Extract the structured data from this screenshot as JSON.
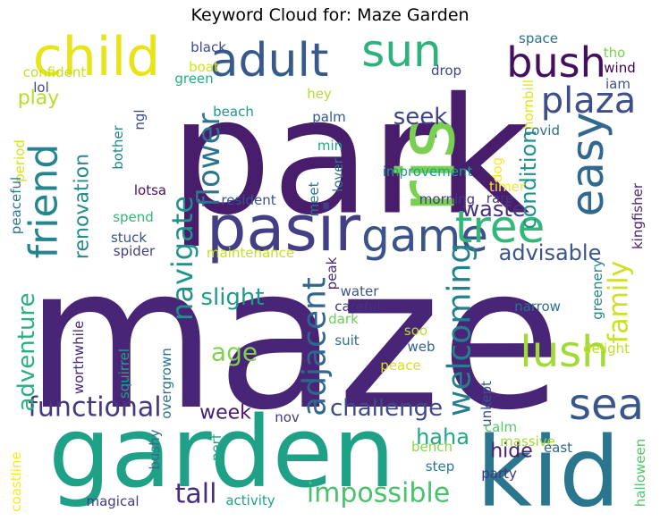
{
  "chart_data": {
    "type": "wordcloud",
    "title": "Keyword Cloud for: Maze Garden",
    "palette": "viridis",
    "words": [
      {
        "text": "maze",
        "rank": 1,
        "color": "#482576"
      },
      {
        "text": "park",
        "rank": 2,
        "color": "#471d6c"
      },
      {
        "text": "garden",
        "rank": 3,
        "color": "#1fa187"
      },
      {
        "text": "kid",
        "rank": 4,
        "color": "#2a768e"
      },
      {
        "text": "pasir",
        "rank": 5,
        "color": "#433e85"
      },
      {
        "text": "ris",
        "rank": 6,
        "color": "#7ad151"
      },
      {
        "text": "child",
        "rank": 7,
        "color": "#e8e419"
      },
      {
        "text": "adult",
        "rank": 8,
        "color": "#38598c"
      },
      {
        "text": "sun",
        "rank": 9,
        "color": "#2db27d"
      },
      {
        "text": "bush",
        "rank": 10,
        "color": "#440f5f"
      },
      {
        "text": "easy",
        "rank": 11,
        "color": "#31688e"
      },
      {
        "text": "game",
        "rank": 12,
        "color": "#3b528b"
      },
      {
        "text": "tree",
        "rank": 13,
        "color": "#32b67a"
      },
      {
        "text": "lush",
        "rank": 14,
        "color": "#a2da37"
      },
      {
        "text": "sea",
        "rank": 15,
        "color": "#39568c"
      },
      {
        "text": "friend",
        "rank": 16,
        "color": "#25858e"
      },
      {
        "text": "plaza",
        "rank": 17,
        "color": "#3d4e8a"
      },
      {
        "text": "welcoming",
        "rank": 18,
        "color": "#277f8e"
      },
      {
        "text": "adjacent",
        "rank": 19,
        "color": "#31668e"
      },
      {
        "text": "flower",
        "rank": 20,
        "color": "#2c738e"
      },
      {
        "text": "navigate",
        "rank": 21,
        "color": "#21918c"
      },
      {
        "text": "family",
        "rank": 22,
        "color": "#cde11d"
      },
      {
        "text": "impossible",
        "rank": 23,
        "color": "#4ac16d"
      },
      {
        "text": "functional",
        "rank": 24,
        "color": "#453781"
      },
      {
        "text": "tall",
        "rank": 25,
        "color": "#472d7b"
      },
      {
        "text": "challenge",
        "rank": 26,
        "color": "#3e4989"
      },
      {
        "text": "adventure",
        "rank": 27,
        "color": "#2ab07f"
      },
      {
        "text": "seek",
        "rank": 28,
        "color": "#414487"
      },
      {
        "text": "advisable",
        "rank": 29,
        "color": "#3a548c"
      },
      {
        "text": "condition",
        "rank": 30,
        "color": "#20928c"
      },
      {
        "text": "slight",
        "rank": 31,
        "color": "#1e9b8a"
      },
      {
        "text": "age",
        "rank": 32,
        "color": "#7fd34e"
      },
      {
        "text": "waste",
        "rank": 33,
        "color": "#46337e"
      },
      {
        "text": "renovation",
        "rank": 34,
        "color": "#238a8d"
      },
      {
        "text": "haha",
        "rank": 35,
        "color": "#22a884"
      },
      {
        "text": "week",
        "rank": 36,
        "color": "#481b6d"
      },
      {
        "text": "hide",
        "rank": 37,
        "color": "#482173"
      },
      {
        "text": "play",
        "rank": 38,
        "color": "#b5de2b"
      },
      {
        "text": "unkept",
        "rank": 39,
        "color": "#3b528b"
      },
      {
        "text": "worthwhile",
        "rank": 40,
        "color": "#482878"
      },
      {
        "text": "overgrown",
        "rank": 41,
        "color": "#2c728e"
      },
      {
        "text": "squirrel",
        "rank": 42,
        "color": "#20a386"
      },
      {
        "text": "black",
        "rank": 43,
        "color": "#3e4a89"
      },
      {
        "text": "boat",
        "rank": 44,
        "color": "#d2e21b"
      },
      {
        "text": "green",
        "rank": 45,
        "color": "#25ab82"
      },
      {
        "text": "confident",
        "rank": 46,
        "color": "#c2df23"
      },
      {
        "text": "lol",
        "rank": 47,
        "color": "#3e4989"
      },
      {
        "text": "space",
        "rank": 48,
        "color": "#2c738e"
      },
      {
        "text": "hornbill",
        "rank": 49,
        "color": "#e5e419"
      },
      {
        "text": "tho",
        "rank": 50,
        "color": "#7ad151"
      },
      {
        "text": "wind",
        "rank": 51,
        "color": "#440154"
      },
      {
        "text": "iam",
        "rank": 52,
        "color": "#3b528b"
      },
      {
        "text": "drop",
        "rank": 53,
        "color": "#404588"
      },
      {
        "text": "hey",
        "rank": 54,
        "color": "#b5de2b"
      },
      {
        "text": "beach",
        "rank": 55,
        "color": "#1f988b"
      },
      {
        "text": "palm",
        "rank": 56,
        "color": "#39568c"
      },
      {
        "text": "ngl",
        "rank": 57,
        "color": "#3e4989"
      },
      {
        "text": "min",
        "rank": 58,
        "color": "#22a785"
      },
      {
        "text": "covid",
        "rank": 59,
        "color": "#2d708e"
      },
      {
        "text": "bother",
        "rank": 60,
        "color": "#25848e"
      },
      {
        "text": "period",
        "rank": 61,
        "color": "#d8e219"
      },
      {
        "text": "peaceful",
        "rank": 62,
        "color": "#2a788e"
      },
      {
        "text": "improvement",
        "rank": 63,
        "color": "#1f9e89"
      },
      {
        "text": "dog",
        "rank": 64,
        "color": "#fde725"
      },
      {
        "text": "lover",
        "rank": 65,
        "color": "#2a788e"
      },
      {
        "text": "timer",
        "rank": 66,
        "color": "#fde725"
      },
      {
        "text": "kingfisher",
        "rank": 67,
        "color": "#482475"
      },
      {
        "text": "morning",
        "rank": 68,
        "color": "#443a83"
      },
      {
        "text": "rare",
        "rank": 69,
        "color": "#453882"
      },
      {
        "text": "meet",
        "rank": 70,
        "color": "#2c738e"
      },
      {
        "text": "lotsa",
        "rank": 71,
        "color": "#471063"
      },
      {
        "text": "resident",
        "rank": 72,
        "color": "#3b528b"
      },
      {
        "text": "spend",
        "rank": 73,
        "color": "#35b779"
      },
      {
        "text": "stuck",
        "rank": 74,
        "color": "#3b528b"
      },
      {
        "text": "spider",
        "rank": 75,
        "color": "#424086"
      },
      {
        "text": "maintenance",
        "rank": 76,
        "color": "#c8e020"
      },
      {
        "text": "peak",
        "rank": 77,
        "color": "#482677"
      },
      {
        "text": "greenery",
        "rank": 78,
        "color": "#25858e"
      },
      {
        "text": "water",
        "rank": 79,
        "color": "#3a548c"
      },
      {
        "text": "careful",
        "rank": 80,
        "color": "#46337e"
      },
      {
        "text": "dark",
        "rank": 81,
        "color": "#6ccd5a"
      },
      {
        "text": "narrow",
        "rank": 82,
        "color": "#2d708e"
      },
      {
        "text": "soo",
        "rank": 83,
        "color": "#b8de29"
      },
      {
        "text": "suit",
        "rank": 84,
        "color": "#2d708e"
      },
      {
        "text": "web",
        "rank": 85,
        "color": "#34618d"
      },
      {
        "text": "peace",
        "rank": 86,
        "color": "#d8e219"
      },
      {
        "text": "delight",
        "rank": 87,
        "color": "#c2df23"
      },
      {
        "text": "nov",
        "rank": 88,
        "color": "#443983"
      },
      {
        "text": "calm",
        "rank": 89,
        "color": "#54c568"
      },
      {
        "text": "massive",
        "rank": 90,
        "color": "#a0da39"
      },
      {
        "text": "east",
        "rank": 91,
        "color": "#31688e"
      },
      {
        "text": "bench",
        "rank": 92,
        "color": "#8bd646"
      },
      {
        "text": "step",
        "rank": 93,
        "color": "#287c8e"
      },
      {
        "text": "party",
        "rank": 94,
        "color": "#46327e"
      },
      {
        "text": "nerf",
        "rank": 95,
        "color": "#21a585"
      },
      {
        "text": "bushy",
        "rank": 96,
        "color": "#2e6f8e"
      },
      {
        "text": "coastline",
        "rank": 97,
        "color": "#fde725"
      },
      {
        "text": "magical",
        "rank": 98,
        "color": "#443b84"
      },
      {
        "text": "activity",
        "rank": 99,
        "color": "#20a386"
      },
      {
        "text": "halloween",
        "rank": 100,
        "color": "#52c569"
      }
    ]
  }
}
